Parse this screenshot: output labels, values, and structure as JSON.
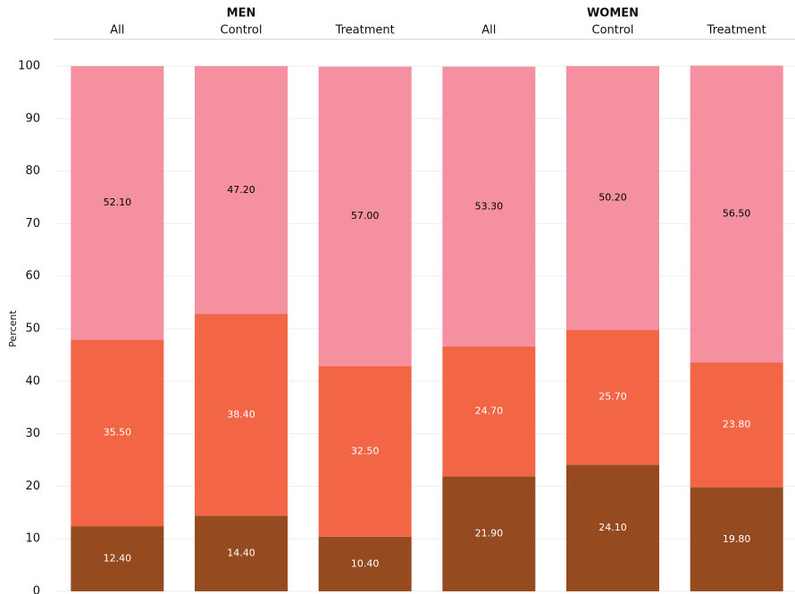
{
  "chart_data": {
    "type": "stacked_bar",
    "groups": [
      "MEN",
      "WOMEN"
    ],
    "categories": [
      "All",
      "Control",
      "Treatment",
      "All",
      "Control",
      "Treatment"
    ],
    "ylabel": "Percent",
    "ylim": [
      0,
      100
    ],
    "yticks": [
      0,
      10,
      20,
      30,
      40,
      50,
      60,
      70,
      80,
      90,
      100
    ],
    "grid": true,
    "series": [
      {
        "color": "#964a20",
        "label_color": "#ffffff",
        "values": [
          12.4,
          14.4,
          10.4,
          21.9,
          24.1,
          19.8
        ],
        "value_labels": [
          "12.40",
          "14.40",
          "10.40",
          "21.90",
          "24.10",
          "19.80"
        ]
      },
      {
        "color": "#f26645",
        "label_color": "#ffffff",
        "values": [
          35.5,
          38.4,
          32.5,
          24.7,
          25.7,
          23.8
        ],
        "value_labels": [
          "35.50",
          "38.40",
          "32.50",
          "24.70",
          "25.70",
          "23.80"
        ]
      },
      {
        "color": "#f4909f",
        "label_color": "#000000",
        "values": [
          52.1,
          47.2,
          57.0,
          53.3,
          50.2,
          56.5
        ],
        "value_labels": [
          "52.10",
          "47.20",
          "57.00",
          "53.30",
          "50.20",
          "56.50"
        ]
      }
    ]
  }
}
